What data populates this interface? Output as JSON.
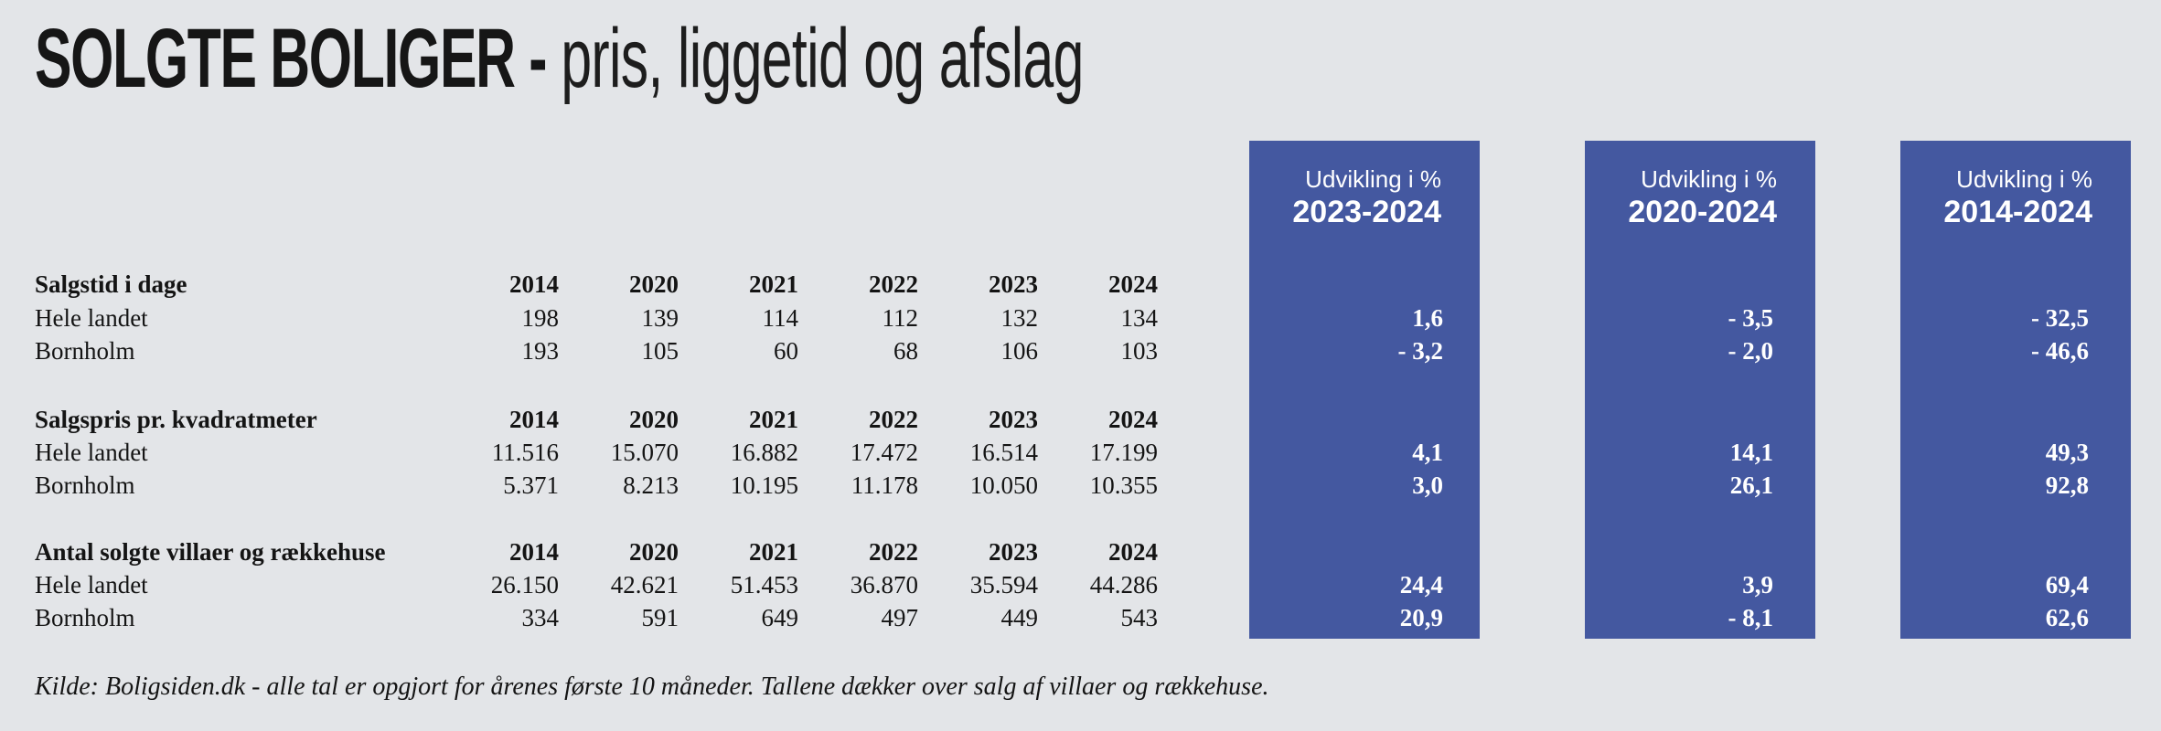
{
  "title": {
    "main": "SOLGTE BOLIGER -",
    "subtitle": " pris, liggetid og afslag"
  },
  "years": [
    "2014",
    "2020",
    "2021",
    "2022",
    "2023",
    "2024"
  ],
  "dev_headers": [
    {
      "label": "Udvikling i %",
      "range": "2023-2024"
    },
    {
      "label": "Udvikling i %",
      "range": "2020-2024"
    },
    {
      "label": "Udvikling i %",
      "range": "2014-2024"
    }
  ],
  "sections": [
    {
      "title": "Salgstid i dage",
      "rows": [
        {
          "label": "Hele landet",
          "values": [
            "198",
            "139",
            "114",
            "112",
            "132",
            "134"
          ],
          "dev": [
            "1,6",
            "- 3,5",
            "- 32,5"
          ]
        },
        {
          "label": "Bornholm",
          "values": [
            "193",
            "105",
            "60",
            "68",
            "106",
            "103"
          ],
          "dev": [
            "- 3,2",
            "- 2,0",
            "- 46,6"
          ]
        }
      ]
    },
    {
      "title": "Salgspris pr. kvadratmeter",
      "rows": [
        {
          "label": "Hele landet",
          "values": [
            "11.516",
            "15.070",
            "16.882",
            "17.472",
            "16.514",
            "17.199"
          ],
          "dev": [
            "4,1",
            "14,1",
            "49,3"
          ]
        },
        {
          "label": "Bornholm",
          "values": [
            "5.371",
            "8.213",
            "10.195",
            "11.178",
            "10.050",
            "10.355"
          ],
          "dev": [
            "3,0",
            "26,1",
            "92,8"
          ]
        }
      ]
    },
    {
      "title": "Antal solgte villaer og rækkehuse",
      "rows": [
        {
          "label": "Hele landet",
          "values": [
            "26.150",
            "42.621",
            "51.453",
            "36.870",
            "35.594",
            "44.286"
          ],
          "dev": [
            "24,4",
            "3,9",
            "69,4"
          ]
        },
        {
          "label": "Bornholm",
          "values": [
            "334",
            "591",
            "649",
            "497",
            "449",
            "543"
          ],
          "dev": [
            "20,9",
            "- 8,1",
            "62,6"
          ]
        }
      ]
    }
  ],
  "footer": "Kilde: Boligsiden.dk - alle tal er opgjort for årenes første 10 måneder. Tallene dækker over salg af villaer og rækkehuse.",
  "colors": {
    "background": "#e3e5e8",
    "accent_blue": "#4458a0",
    "text": "#141414",
    "box_text": "#ffffff"
  },
  "chart_data": {
    "type": "table",
    "title": "SOLGTE BOLIGER - pris, liggetid og afslag",
    "x": [
      2014,
      2020,
      2021,
      2022,
      2023,
      2024
    ],
    "development_columns": [
      "2023-2024",
      "2020-2024",
      "2014-2024"
    ],
    "sections": [
      {
        "metric": "Salgstid i dage",
        "series": [
          {
            "name": "Hele landet",
            "values": [
              198,
              139,
              114,
              112,
              132,
              134
            ],
            "udvikling_pct": {
              "2023-2024": 1.6,
              "2020-2024": -3.5,
              "2014-2024": -32.5
            }
          },
          {
            "name": "Bornholm",
            "values": [
              193,
              105,
              60,
              68,
              106,
              103
            ],
            "udvikling_pct": {
              "2023-2024": -3.2,
              "2020-2024": -2.0,
              "2014-2024": -46.6
            }
          }
        ]
      },
      {
        "metric": "Salgspris pr. kvadratmeter",
        "series": [
          {
            "name": "Hele landet",
            "values": [
              11516,
              15070,
              16882,
              17472,
              16514,
              17199
            ],
            "udvikling_pct": {
              "2023-2024": 4.1,
              "2020-2024": 14.1,
              "2014-2024": 49.3
            }
          },
          {
            "name": "Bornholm",
            "values": [
              5371,
              8213,
              10195,
              11178,
              10050,
              10355
            ],
            "udvikling_pct": {
              "2023-2024": 3.0,
              "2020-2024": 26.1,
              "2014-2024": 92.8
            }
          }
        ]
      },
      {
        "metric": "Antal solgte villaer og rækkehuse",
        "series": [
          {
            "name": "Hele landet",
            "values": [
              26150,
              42621,
              51453,
              36870,
              35594,
              44286
            ],
            "udvikling_pct": {
              "2023-2024": 24.4,
              "2020-2024": 3.9,
              "2014-2024": 69.4
            }
          },
          {
            "name": "Bornholm",
            "values": [
              334,
              591,
              649,
              497,
              449,
              543
            ],
            "udvikling_pct": {
              "2023-2024": 20.9,
              "2020-2024": -8.1,
              "2014-2024": 62.6
            }
          }
        ]
      }
    ],
    "source": "Boligsiden.dk"
  }
}
